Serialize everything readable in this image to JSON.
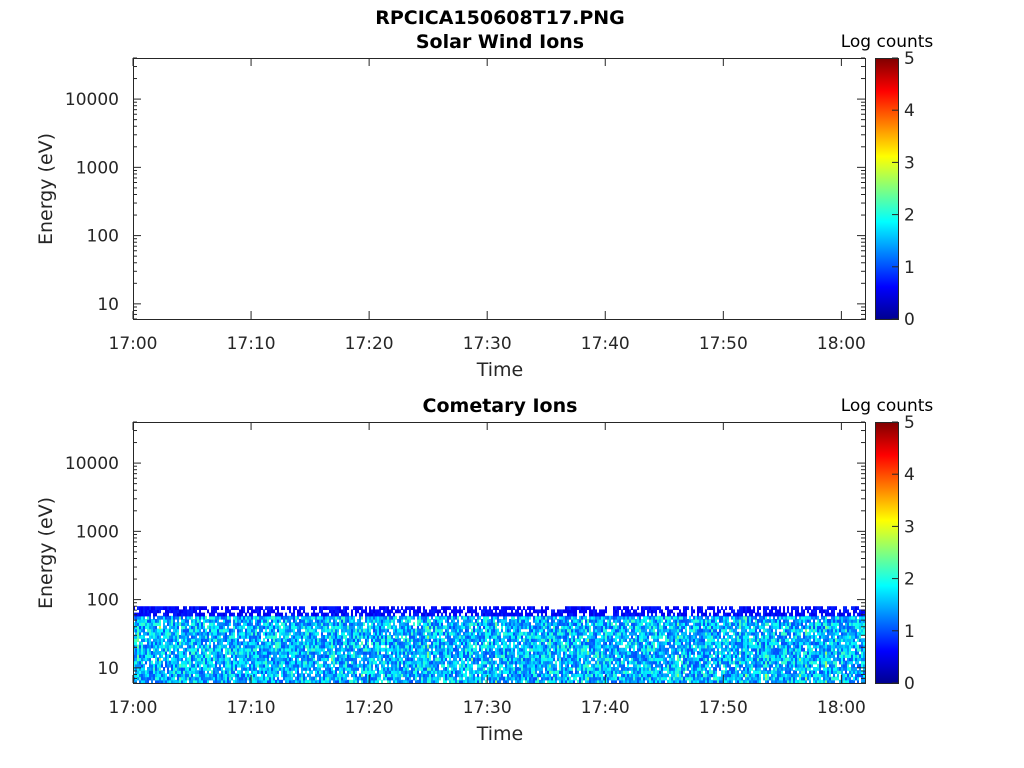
{
  "figure": {
    "title": "RPCICA150608T17.PNG"
  },
  "chart_data": [
    {
      "type": "heatmap",
      "title": "Solar Wind Ions",
      "xlabel": "Time",
      "ylabel": "Energy (eV)",
      "x_ticks": [
        "17:00",
        "17:10",
        "17:20",
        "17:30",
        "17:40",
        "17:50",
        "18:00"
      ],
      "x_range": [
        "17:00",
        "18:02"
      ],
      "y_scale": "log",
      "y_ticks": [
        "10",
        "100",
        "1000",
        "10000"
      ],
      "y_range": [
        6,
        40000
      ],
      "colorbar": {
        "title": "Log counts",
        "ticks": [
          "0",
          "1",
          "2",
          "3",
          "4",
          "5"
        ],
        "range": [
          0,
          5
        ],
        "colormap": "jet"
      },
      "data": {
        "present": false,
        "energy_range_eV": null,
        "typical_log_counts": null
      }
    },
    {
      "type": "heatmap",
      "title": "Cometary Ions",
      "xlabel": "Time",
      "ylabel": "Energy (eV)",
      "x_ticks": [
        "17:00",
        "17:10",
        "17:20",
        "17:30",
        "17:40",
        "17:50",
        "18:00"
      ],
      "x_range": [
        "17:00",
        "18:02"
      ],
      "y_scale": "log",
      "y_ticks": [
        "10",
        "100",
        "1000",
        "10000"
      ],
      "y_range": [
        6,
        40000
      ],
      "colorbar": {
        "title": "Log counts",
        "ticks": [
          "0",
          "1",
          "2",
          "3",
          "4",
          "5"
        ],
        "range": [
          0,
          5
        ],
        "colormap": "jet"
      },
      "data": {
        "present": true,
        "energy_range_eV": [
          6,
          80
        ],
        "typical_log_counts": [
          0.5,
          2.5
        ]
      }
    }
  ]
}
